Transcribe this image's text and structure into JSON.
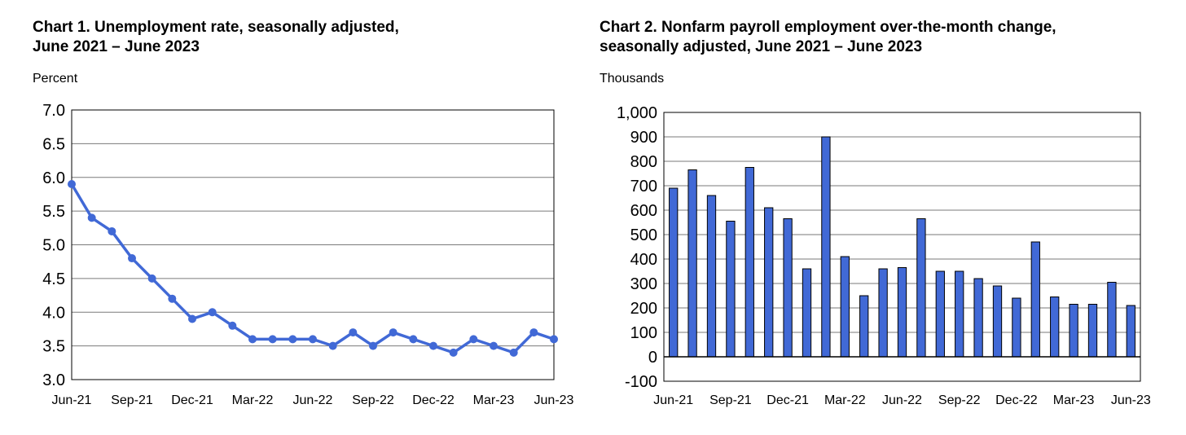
{
  "chart_data": [
    {
      "type": "line",
      "title_line1": "Chart 1. Unemployment rate, seasonally adjusted,",
      "title_line2": "June 2021 – June 2023",
      "ylabel": "Percent",
      "xlabel": "",
      "ylim": [
        3.0,
        7.0
      ],
      "y_ticks": [
        "3.0",
        "3.5",
        "4.0",
        "4.5",
        "5.0",
        "5.5",
        "6.0",
        "6.5",
        "7.0"
      ],
      "x_tick_labels": [
        "Jun-21",
        "Sep-21",
        "Dec-21",
        "Mar-22",
        "Jun-22",
        "Sep-22",
        "Dec-22",
        "Mar-23",
        "Jun-23"
      ],
      "x_tick_every": 3,
      "grid": true,
      "color": "#4169d6",
      "categories": [
        "Jun-21",
        "Jul-21",
        "Aug-21",
        "Sep-21",
        "Oct-21",
        "Nov-21",
        "Dec-21",
        "Jan-22",
        "Feb-22",
        "Mar-22",
        "Apr-22",
        "May-22",
        "Jun-22",
        "Jul-22",
        "Aug-22",
        "Sep-22",
        "Oct-22",
        "Nov-22",
        "Dec-22",
        "Jan-23",
        "Feb-23",
        "Mar-23",
        "Apr-23",
        "May-23",
        "Jun-23"
      ],
      "values": [
        5.9,
        5.4,
        5.2,
        4.8,
        4.5,
        4.2,
        3.9,
        4.0,
        3.8,
        3.6,
        3.6,
        3.6,
        3.6,
        3.5,
        3.7,
        3.5,
        3.7,
        3.6,
        3.5,
        3.4,
        3.6,
        3.5,
        3.4,
        3.7,
        3.6
      ]
    },
    {
      "type": "bar",
      "title_line1": "Chart 2. Nonfarm payroll employment over-the-month change,",
      "title_line2": "seasonally adjusted, June 2021 – June 2023",
      "ylabel": "Thousands",
      "xlabel": "",
      "ylim": [
        -100,
        1000
      ],
      "y_ticks": [
        "-100",
        "0",
        "100",
        "200",
        "300",
        "400",
        "500",
        "600",
        "700",
        "800",
        "900",
        "1,000"
      ],
      "x_tick_labels": [
        "Jun-21",
        "Sep-21",
        "Dec-21",
        "Mar-22",
        "Jun-22",
        "Sep-22",
        "Dec-22",
        "Mar-23",
        "Jun-23"
      ],
      "x_tick_every": 3,
      "grid": true,
      "color": "#4169d6",
      "categories": [
        "Jun-21",
        "Jul-21",
        "Aug-21",
        "Sep-21",
        "Oct-21",
        "Nov-21",
        "Dec-21",
        "Jan-22",
        "Feb-22",
        "Mar-22",
        "Apr-22",
        "May-22",
        "Jun-22",
        "Jul-22",
        "Aug-22",
        "Sep-22",
        "Oct-22",
        "Nov-22",
        "Dec-22",
        "Jan-23",
        "Feb-23",
        "Mar-23",
        "Apr-23",
        "May-23",
        "Jun-23"
      ],
      "values": [
        690,
        765,
        660,
        555,
        775,
        610,
        565,
        360,
        900,
        410,
        250,
        360,
        365,
        565,
        350,
        350,
        320,
        290,
        240,
        470,
        245,
        215,
        215,
        305,
        210
      ]
    }
  ]
}
